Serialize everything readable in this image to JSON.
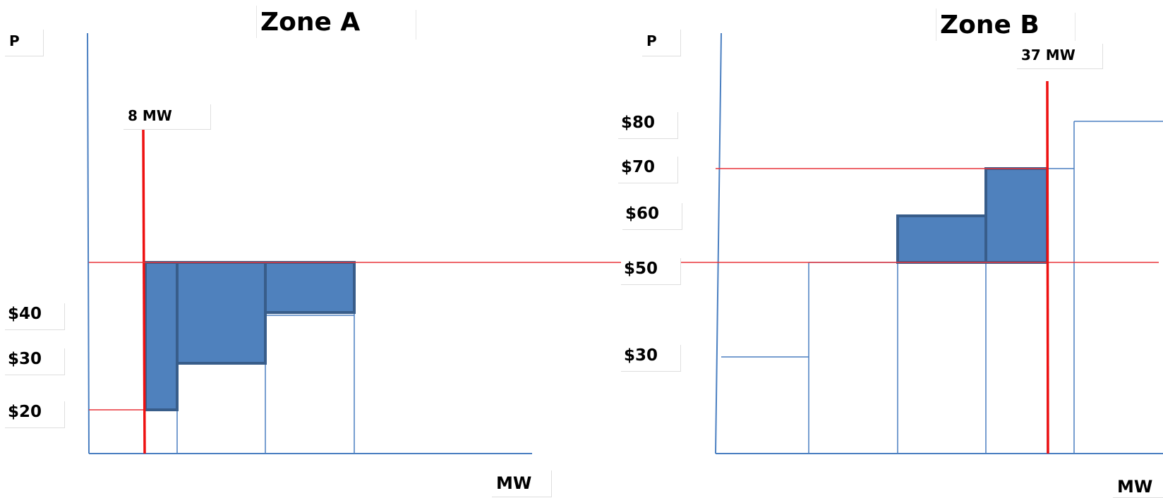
{
  "zone_a": {
    "title": "Zone A",
    "y_axis_label": "P",
    "x_axis_label": "MW",
    "dispatch_label": "8 MW",
    "price_labels": [
      "$40",
      "$30",
      "$20"
    ]
  },
  "zone_b": {
    "title": "Zone B",
    "y_axis_label": "P",
    "x_axis_label": "MW",
    "dispatch_label": "37 MW",
    "price_labels": [
      "$80",
      "$70",
      "$60",
      "$50",
      "$30"
    ]
  },
  "colors": {
    "axis": "#4a7fc1",
    "fill": "#4f81bd",
    "fill_border": "#385d8a",
    "price_line": "#e8333a",
    "dispatch_line": "#ee1111"
  }
}
